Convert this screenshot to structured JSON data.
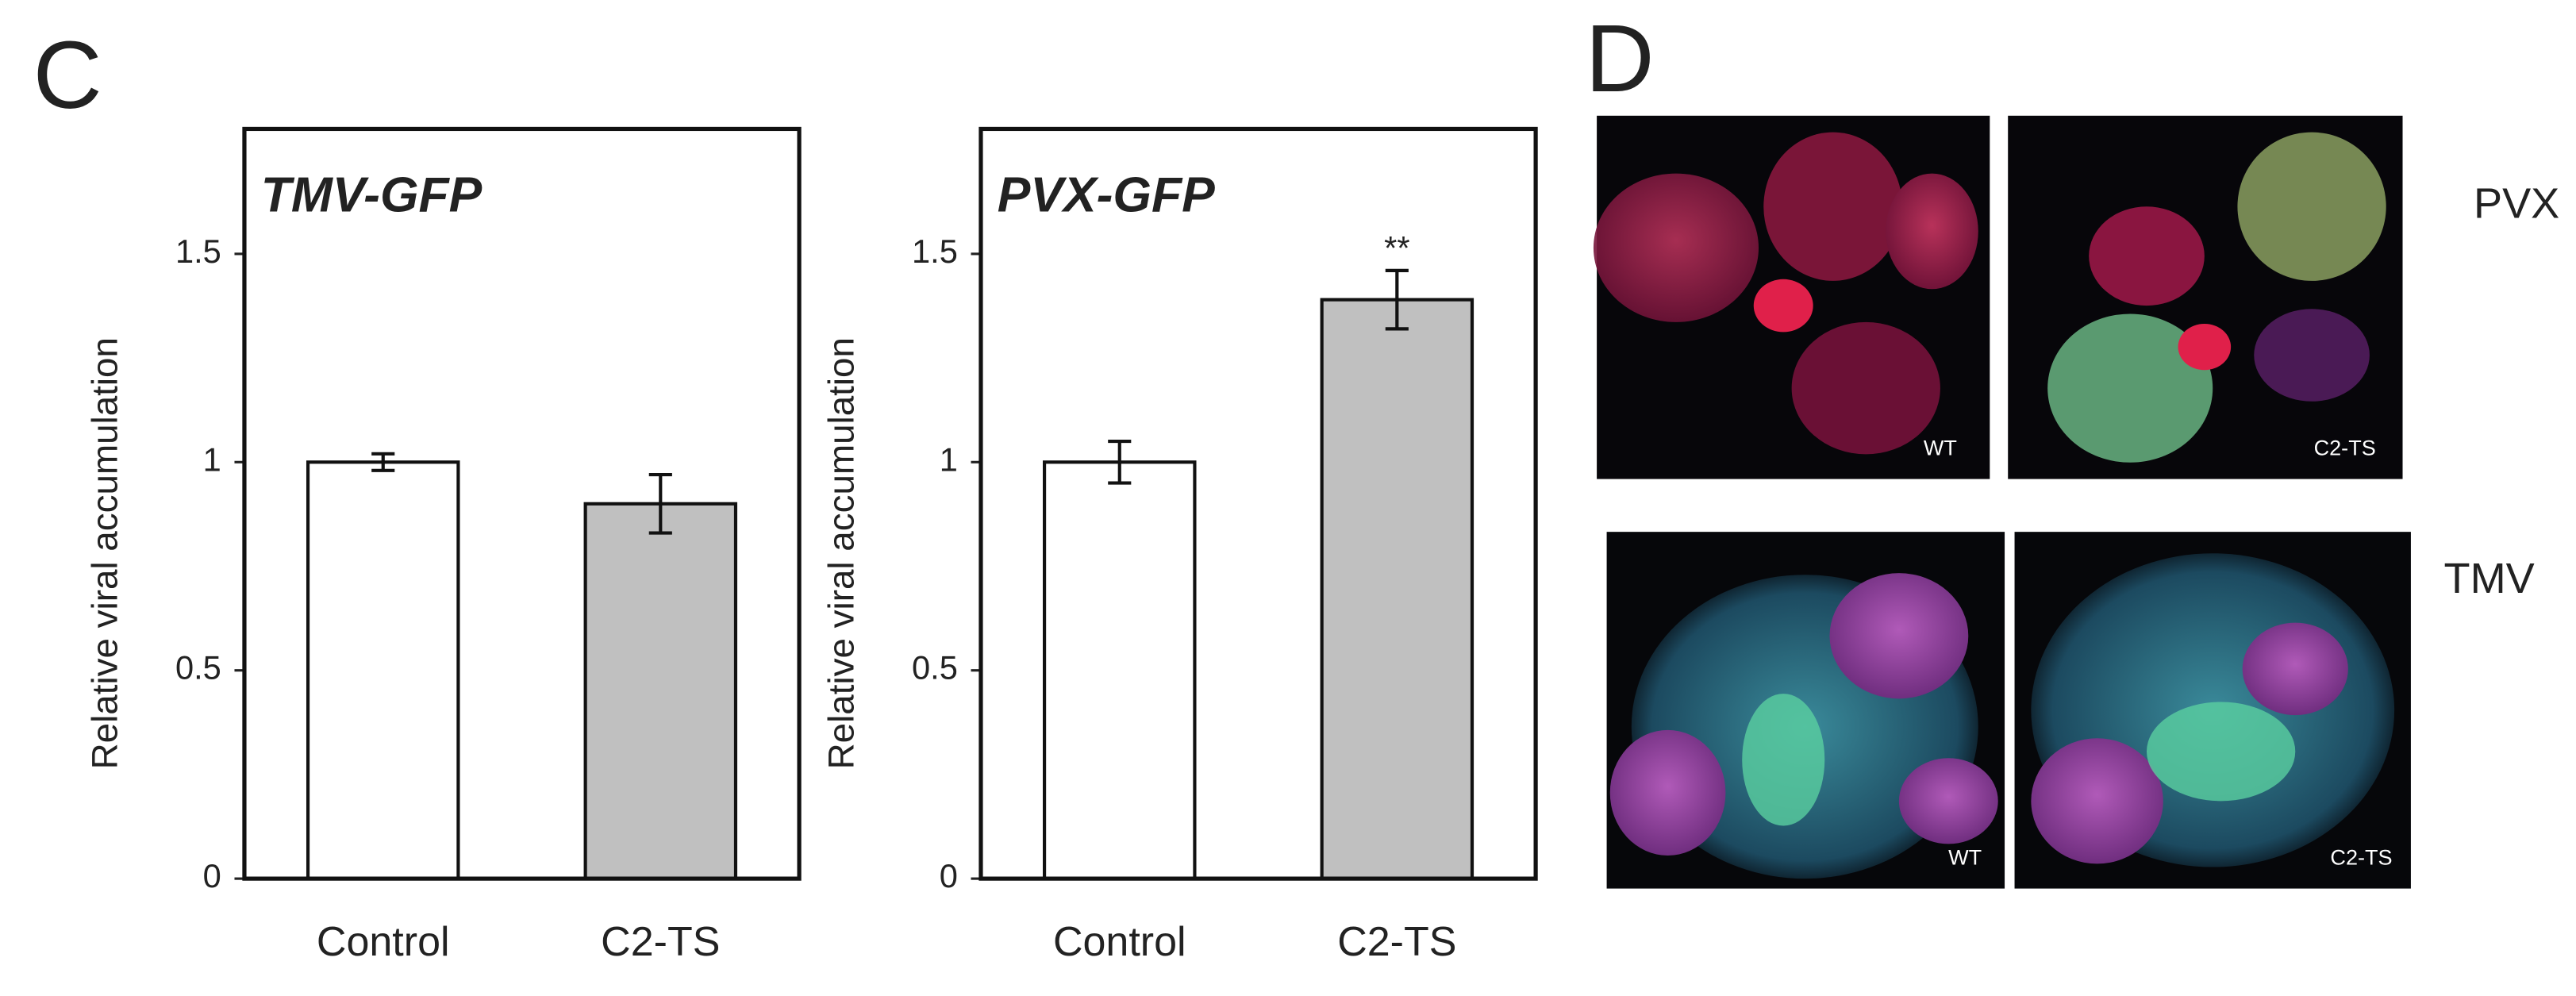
{
  "chart_data": [
    {
      "type": "bar",
      "title": "TMV-GFP",
      "ylabel": "Relative viral accumulation",
      "categories": [
        "Control",
        "C2-TS"
      ],
      "values": [
        1.0,
        0.9
      ],
      "errors": [
        0.02,
        0.07
      ],
      "colors": [
        "#ffffff",
        "#c0c0c0"
      ],
      "ylim": [
        0,
        1.8
      ],
      "yticks": [
        0,
        0.5,
        1,
        1.5
      ]
    },
    {
      "type": "bar",
      "title": "PVX-GFP",
      "ylabel": "Relative viral accumulation",
      "categories": [
        "Control",
        "C2-TS"
      ],
      "values": [
        1.0,
        1.39
      ],
      "errors": [
        0.05,
        0.07
      ],
      "annotations": [
        null,
        "**"
      ],
      "colors": [
        "#ffffff",
        "#c0c0c0"
      ],
      "ylim": [
        0,
        1.8
      ],
      "yticks": [
        0,
        0.5,
        1,
        1.5
      ]
    }
  ],
  "panels": {
    "left": "C",
    "right": "D",
    "photos": {
      "top_label": "PVX",
      "bottom_label": "TMV",
      "left": "WT",
      "right": "C2-TS"
    }
  }
}
